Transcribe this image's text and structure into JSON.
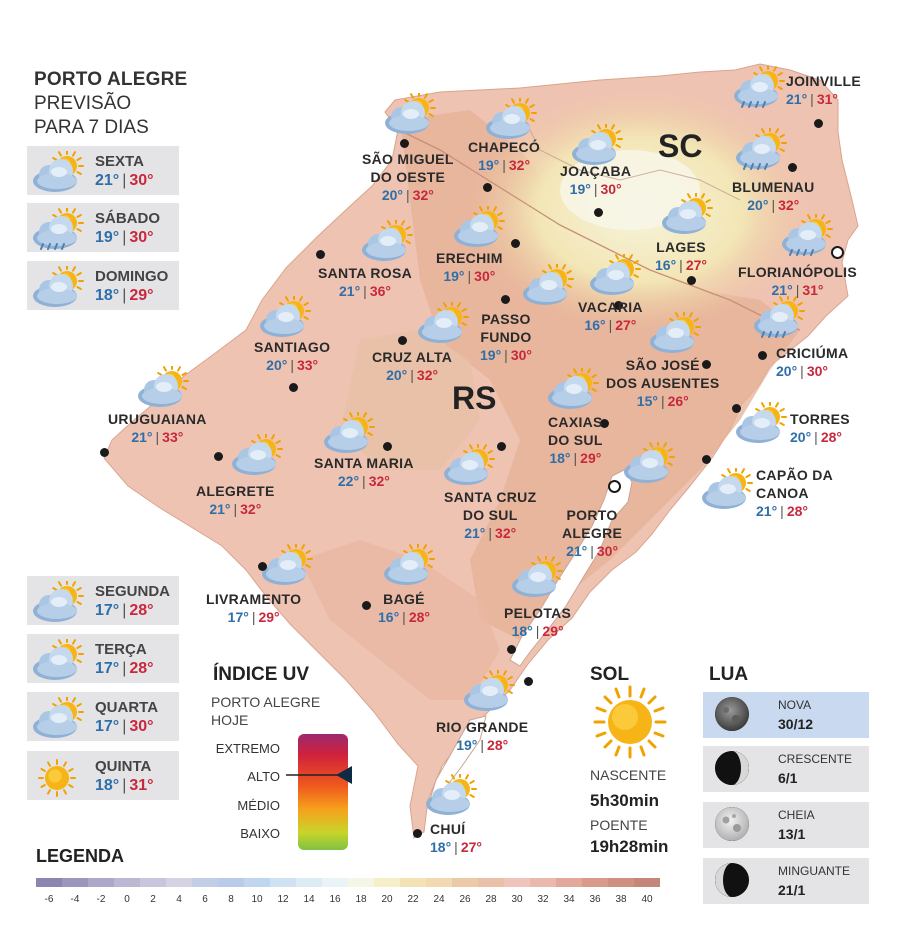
{
  "header": {
    "title": "PORTO ALEGRE",
    "subtitle_line1": "PREVISÃO",
    "subtitle_line2": "PARA 7 DIAS"
  },
  "days": [
    {
      "name": "SEXTA",
      "min": "21°",
      "max": "30°",
      "icon": "partly-cloudy-icon"
    },
    {
      "name": "SÁBADO",
      "min": "19°",
      "max": "30°",
      "icon": "sun-cloud-rain-icon"
    },
    {
      "name": "DOMINGO",
      "min": "18°",
      "max": "29°",
      "icon": "partly-cloudy-icon"
    },
    {
      "name": "SEGUNDA",
      "min": "17°",
      "max": "28°",
      "icon": "partly-cloudy-icon"
    },
    {
      "name": "TERÇA",
      "min": "17°",
      "max": "28°",
      "icon": "partly-cloudy-icon"
    },
    {
      "name": "QUARTA",
      "min": "17°",
      "max": "30°",
      "icon": "partly-cloudy-icon"
    },
    {
      "name": "QUINTA",
      "min": "18°",
      "max": "31°",
      "icon": "sun-icon"
    }
  ],
  "regions": {
    "sc": "SC",
    "rs": "RS"
  },
  "cities": [
    {
      "id": "joinville",
      "line1": "JOINVILLE",
      "line2": "",
      "min": "21°",
      "max": "31°"
    },
    {
      "id": "sao-miguel-do-oeste",
      "line1": "SÃO MIGUEL",
      "line2": "DO OESTE",
      "min": "20°",
      "max": "32°"
    },
    {
      "id": "chapeco",
      "line1": "CHAPECÓ",
      "line2": "",
      "min": "19°",
      "max": "32°"
    },
    {
      "id": "joacaba",
      "line1": "JOAÇABA",
      "line2": "",
      "min": "19°",
      "max": "30°"
    },
    {
      "id": "blumenau",
      "line1": "BLUMENAU",
      "line2": "",
      "min": "20°",
      "max": "32°"
    },
    {
      "id": "erechim",
      "line1": "ERECHIM",
      "line2": "",
      "min": "19°",
      "max": "30°"
    },
    {
      "id": "lages",
      "line1": "LAGES",
      "line2": "",
      "min": "16°",
      "max": "27°"
    },
    {
      "id": "florianopolis",
      "line1": "FLORIANÓPOLIS",
      "line2": "",
      "min": "21°",
      "max": "31°"
    },
    {
      "id": "santa-rosa",
      "line1": "SANTA ROSA",
      "line2": "",
      "min": "21°",
      "max": "36°"
    },
    {
      "id": "passo-fundo",
      "line1": "PASSO",
      "line2": "FUNDO",
      "min": "19°",
      "max": "30°"
    },
    {
      "id": "vacaria",
      "line1": "VACARIA",
      "line2": "",
      "min": "16°",
      "max": "27°"
    },
    {
      "id": "santiago",
      "line1": "SANTIAGO",
      "line2": "",
      "min": "20°",
      "max": "33°"
    },
    {
      "id": "cruz-alta",
      "line1": "CRUZ ALTA",
      "line2": "",
      "min": "20°",
      "max": "32°"
    },
    {
      "id": "sao-jose-dos-ausentes",
      "line1": "SÃO JOSÉ",
      "line2": "DOS AUSENTES",
      "min": "15°",
      "max": "26°"
    },
    {
      "id": "criciuma",
      "line1": "CRICIÚMA",
      "line2": "",
      "min": "20°",
      "max": "30°"
    },
    {
      "id": "uruguaiana",
      "line1": "URUGUAIANA",
      "line2": "",
      "min": "21°",
      "max": "33°"
    },
    {
      "id": "caxias-do-sul",
      "line1": "CAXIAS",
      "line2": "DO SUL",
      "min": "18°",
      "max": "29°"
    },
    {
      "id": "torres",
      "line1": "TORRES",
      "line2": "",
      "min": "20°",
      "max": "28°"
    },
    {
      "id": "santa-maria",
      "line1": "SANTA MARIA",
      "line2": "",
      "min": "22°",
      "max": "32°"
    },
    {
      "id": "alegrete",
      "line1": "ALEGRETE",
      "line2": "",
      "min": "21°",
      "max": "32°"
    },
    {
      "id": "santa-cruz-do-sul",
      "line1": "SANTA CRUZ",
      "line2": "DO SUL",
      "min": "21°",
      "max": "32°"
    },
    {
      "id": "capao-da-canoa",
      "line1": "CAPÃO DA",
      "line2": "CANOA",
      "min": "21°",
      "max": "28°"
    },
    {
      "id": "porto-alegre",
      "line1": "PORTO",
      "line2": "ALEGRE",
      "min": "21°",
      "max": "30°"
    },
    {
      "id": "livramento",
      "line1": "LIVRAMENTO",
      "line2": "",
      "min": "17°",
      "max": "29°"
    },
    {
      "id": "bage",
      "line1": "BAGÉ",
      "line2": "",
      "min": "16°",
      "max": "28°"
    },
    {
      "id": "pelotas",
      "line1": "PELOTAS",
      "line2": "",
      "min": "18°",
      "max": "29°"
    },
    {
      "id": "rio-grande",
      "line1": "RIO GRANDE",
      "line2": "",
      "min": "19°",
      "max": "28°"
    },
    {
      "id": "chui",
      "line1": "CHUÍ",
      "line2": "",
      "min": "18°",
      "max": "27°"
    }
  ],
  "uv": {
    "title": "ÍNDICE UV",
    "sub1": "PORTO ALEGRE",
    "sub2": "HOJE",
    "levels": [
      "EXTREMO",
      "ALTO",
      "MÉDIO",
      "BAIXO"
    ],
    "current": "ALTO"
  },
  "sun": {
    "title": "SOL",
    "sunrise_label": "NASCENTE",
    "sunrise": "5h30min",
    "sunset_label": "POENTE",
    "sunset": "19h28min"
  },
  "moon": {
    "title": "LUA",
    "phases": [
      {
        "name": "NOVA",
        "date": "30/12",
        "highlight": true
      },
      {
        "name": "CRESCENTE",
        "date": "6/1",
        "highlight": false
      },
      {
        "name": "CHEIA",
        "date": "13/1",
        "highlight": false
      },
      {
        "name": "MINGUANTE",
        "date": "21/1",
        "highlight": false
      }
    ]
  },
  "legend": {
    "title": "LEGENDA",
    "ticks": [
      "-6",
      "-4",
      "-2",
      "0",
      "2",
      "4",
      "6",
      "8",
      "10",
      "12",
      "14",
      "16",
      "18",
      "20",
      "22",
      "24",
      "26",
      "28",
      "30",
      "32",
      "34",
      "36",
      "38",
      "40"
    ],
    "colors": [
      "#8a86b0",
      "#9a96bc",
      "#aba8c8",
      "#bcb8d4",
      "#c8c6dc",
      "#d4d3e4",
      "#c2cde6",
      "#b9cbe8",
      "#bfd6ee",
      "#cfe2f2",
      "#dcecf5",
      "#eaf4f6",
      "#f6f6e6",
      "#f6f0c8",
      "#f3e3b4",
      "#f1d9b2",
      "#eccaa8",
      "#e9c0a8",
      "#efc4bc",
      "#eab8ac",
      "#e2a89a",
      "#d99a8c",
      "#cf9080",
      "#c48678"
    ],
    "accent_min": "#2f6fa8",
    "accent_max": "#c8283c"
  }
}
